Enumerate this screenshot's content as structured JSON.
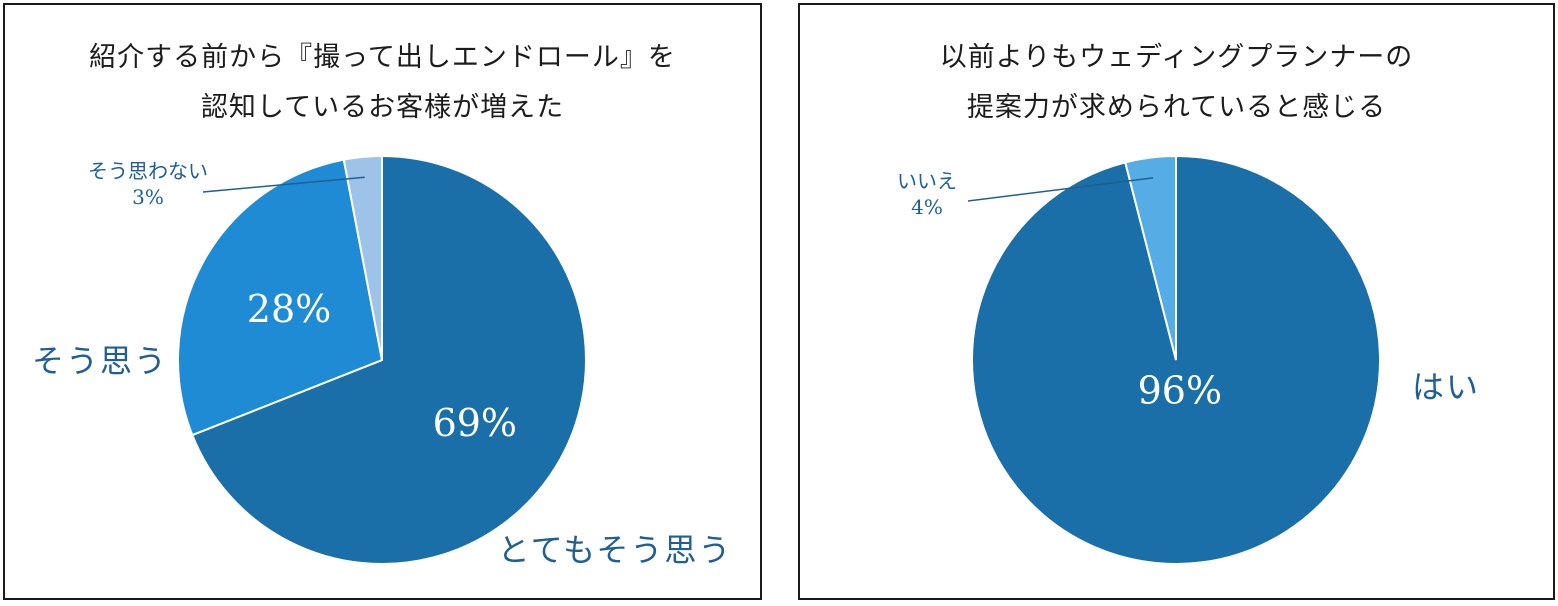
{
  "chart_data": [
    {
      "type": "pie",
      "title_lines": [
        "紹介する前から『撮って出しエンドロール』を",
        "認知しているお客様が増えた"
      ],
      "slices": [
        {
          "label": "とてもそう思う",
          "value": 69,
          "color": "#1a6fa8",
          "pct_text": "69%"
        },
        {
          "label": "そう思う",
          "value": 28,
          "color": "#1f8bd4",
          "pct_text": "28%"
        },
        {
          "label": "そう思わない",
          "value": 3,
          "color": "#9dc3e8",
          "pct_text": "3%"
        }
      ]
    },
    {
      "type": "pie",
      "title_lines": [
        "以前よりもウェディングプランナーの",
        "提案力が求められていると感じる"
      ],
      "slices": [
        {
          "label": "はい",
          "value": 96,
          "color": "#1a6fa8",
          "pct_text": "96%"
        },
        {
          "label": "いいえ",
          "value": 4,
          "color": "#56ade6",
          "pct_text": "4%"
        }
      ]
    }
  ],
  "colors": {
    "label_text": "#1f5f96",
    "leader_line": "#1f5f96",
    "slice_border": "#ffffff"
  }
}
